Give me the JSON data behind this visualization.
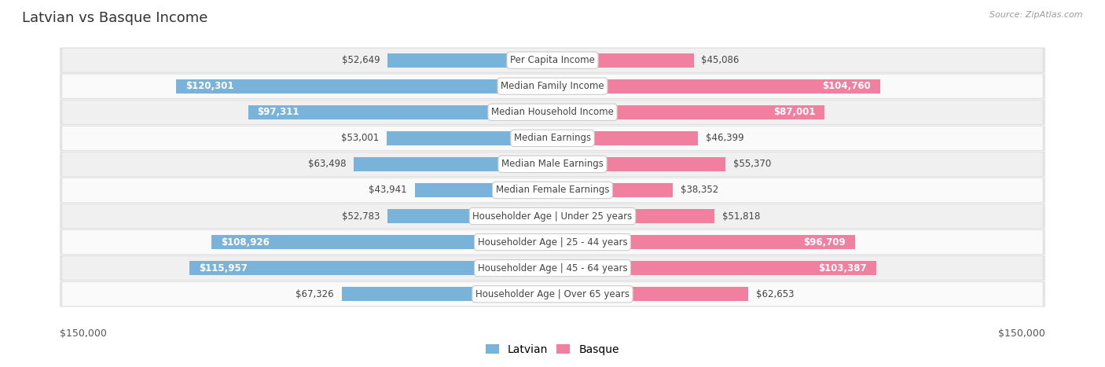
{
  "title": "Latvian vs Basque Income",
  "source": "Source: ZipAtlas.com",
  "categories": [
    "Per Capita Income",
    "Median Family Income",
    "Median Household Income",
    "Median Earnings",
    "Median Male Earnings",
    "Median Female Earnings",
    "Householder Age | Under 25 years",
    "Householder Age | 25 - 44 years",
    "Householder Age | 45 - 64 years",
    "Householder Age | Over 65 years"
  ],
  "latvian_values": [
    52649,
    120301,
    97311,
    53001,
    63498,
    43941,
    52783,
    108926,
    115957,
    67326
  ],
  "basque_values": [
    45086,
    104760,
    87001,
    46399,
    55370,
    38352,
    51818,
    96709,
    103387,
    62653
  ],
  "latvian_labels": [
    "$52,649",
    "$120,301",
    "$97,311",
    "$53,001",
    "$63,498",
    "$43,941",
    "$52,783",
    "$108,926",
    "$115,957",
    "$67,326"
  ],
  "basque_labels": [
    "$45,086",
    "$104,760",
    "$87,001",
    "$46,399",
    "$55,370",
    "$38,352",
    "$51,818",
    "$96,709",
    "$103,387",
    "$62,653"
  ],
  "latvian_color": "#7ab3d9",
  "basque_color": "#f07fa0",
  "latvian_color_solid": "#4a90c4",
  "basque_color_solid": "#e84d80",
  "max_value": 150000,
  "bg_color": "#ffffff",
  "row_bg_even": "#f0f0f0",
  "row_bg_odd": "#fafafa",
  "row_border": "#cccccc",
  "title_fontsize": 13,
  "label_fontsize": 8.5,
  "category_fontsize": 8.5,
  "legend_fontsize": 10,
  "axis_label_fontsize": 9,
  "white_label_threshold": 70000
}
